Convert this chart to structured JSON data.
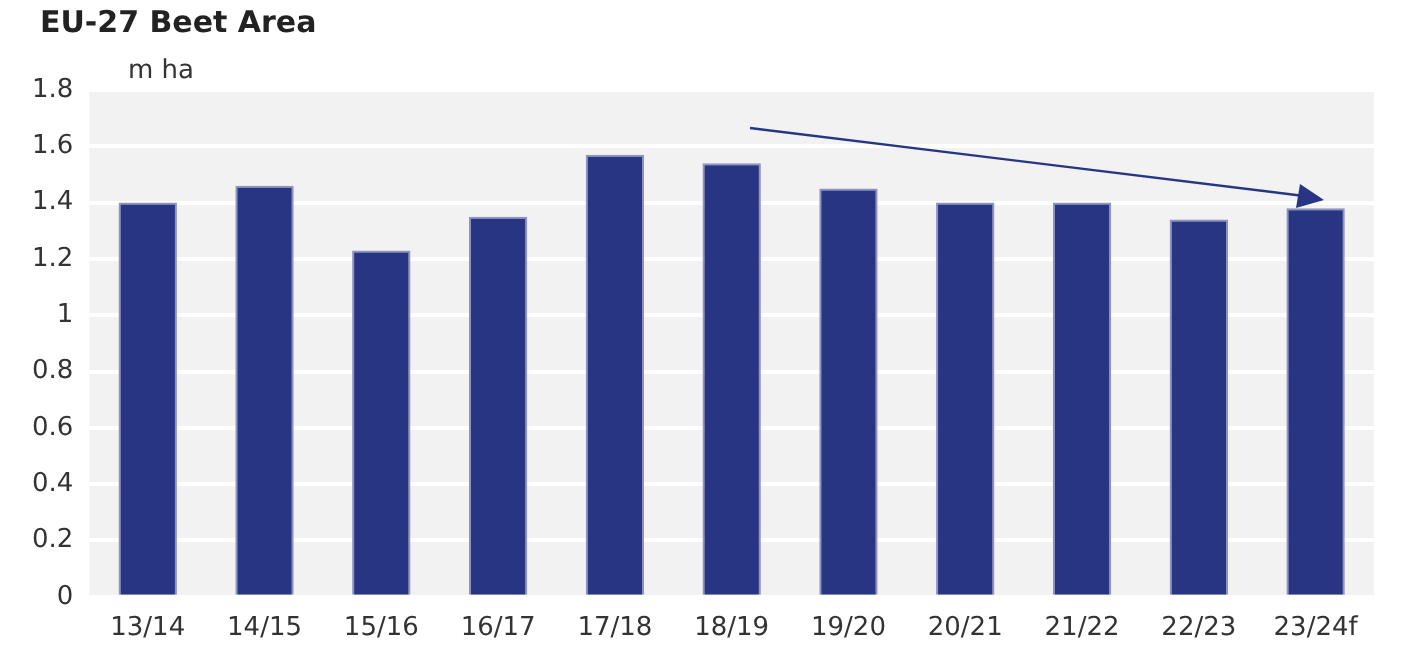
{
  "chart_data": {
    "type": "bar",
    "title": "EU-27 Beet Area",
    "ylabel": "m ha",
    "categories": [
      "13/14",
      "14/15",
      "15/16",
      "16/17",
      "17/18",
      "18/19",
      "19/20",
      "20/21",
      "21/22",
      "22/23",
      "23/24f"
    ],
    "values": [
      1.4,
      1.46,
      1.23,
      1.35,
      1.57,
      1.54,
      1.45,
      1.4,
      1.4,
      1.34,
      1.38
    ],
    "color": "#283583",
    "ylim": [
      0,
      1.8
    ],
    "yticks": [
      0,
      0.2,
      0.4,
      0.6,
      0.8,
      1,
      1.2,
      1.4,
      1.6,
      1.8
    ],
    "grid": "y",
    "legend": false
  }
}
